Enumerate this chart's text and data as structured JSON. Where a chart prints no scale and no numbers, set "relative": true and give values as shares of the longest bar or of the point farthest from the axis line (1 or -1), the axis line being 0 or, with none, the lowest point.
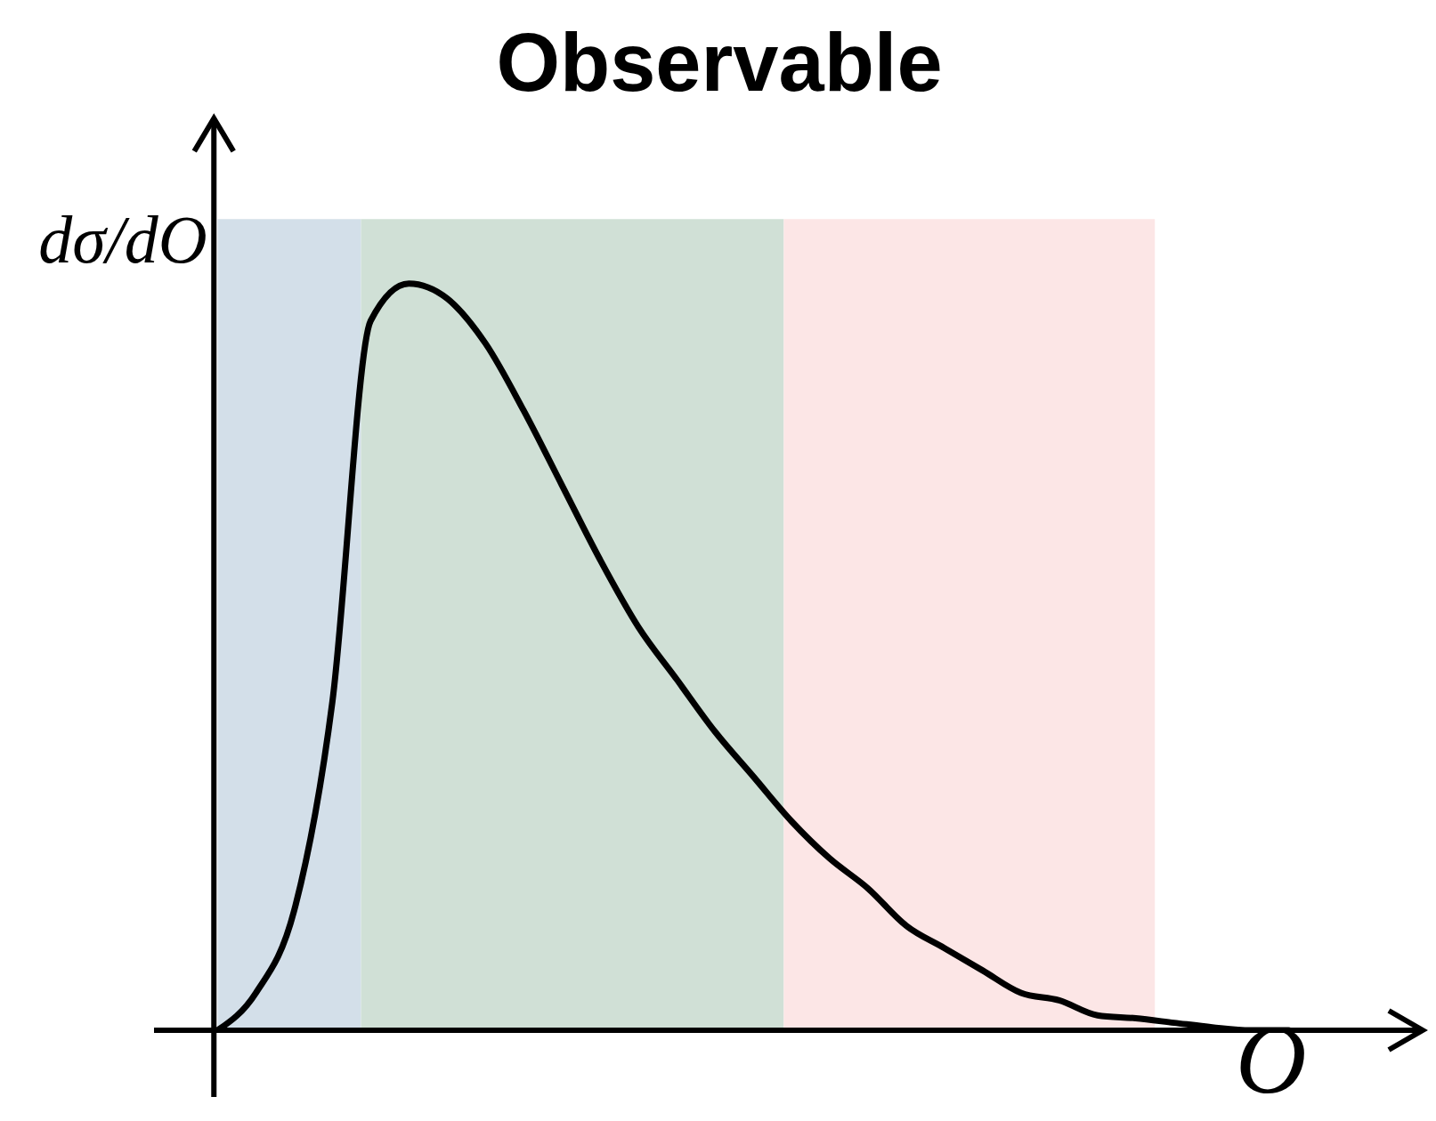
{
  "chart_data": {
    "type": "line",
    "title": "Observable",
    "xlabel": "O",
    "ylabel": "dσ/dO",
    "relative": true,
    "marker": "none",
    "line_style": "solid",
    "categories": [
      null,
      null,
      null,
      null,
      null,
      null,
      null,
      null,
      null,
      null,
      null,
      null,
      null,
      null,
      null,
      null,
      null,
      null,
      null,
      null,
      null,
      null,
      null,
      null,
      null,
      null,
      null,
      null,
      null
    ],
    "series": [
      {
        "color": "#000000",
        "values": [
          0,
          0.05,
          0.16,
          0.44,
          0.95,
          1.0,
          0.98,
          0.92,
          0.83,
          0.73,
          0.63,
          0.54,
          0.47,
          0.4,
          0.34,
          0.28,
          0.23,
          0.19,
          0.14,
          0.11,
          0.08,
          0.05,
          0.04,
          0.02,
          0.016,
          0.01,
          0.004,
          0,
          0
        ]
      }
    ]
  }
}
